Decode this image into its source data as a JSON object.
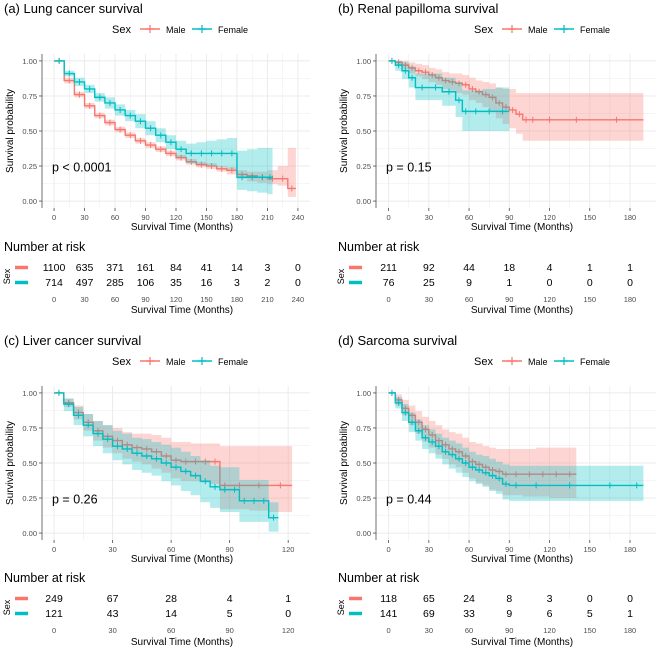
{
  "legend": {
    "title": "Sex",
    "male": "Male",
    "female": "Female"
  },
  "colors": {
    "male": "#F8766D",
    "female": "#00BFC4",
    "grid": "#EBEBEB",
    "axis": "#4D4D4D",
    "text": "#000000"
  },
  "risk_heading": "Number at risk",
  "risk_strata_label": "Sex",
  "chart_data": [
    {
      "type": "line",
      "title": "(a) Lung cancer survival",
      "xlabel": "Survival Time (Months)",
      "ylabel": "Survival probability",
      "xlim": [
        0,
        240
      ],
      "ylim": [
        0,
        1
      ],
      "xticks": [
        0,
        30,
        60,
        90,
        120,
        150,
        180,
        210,
        240
      ],
      "yticks": [
        "0.00",
        "0.25",
        "0.50",
        "0.75",
        "1.00"
      ],
      "pvalue": "p < 0.0001",
      "series": [
        {
          "name": "Male",
          "x": [
            0,
            10,
            20,
            30,
            40,
            50,
            60,
            70,
            80,
            90,
            100,
            110,
            120,
            130,
            140,
            150,
            160,
            170,
            180,
            190,
            200,
            210,
            220,
            230,
            238
          ],
          "y": [
            1.0,
            0.86,
            0.76,
            0.68,
            0.61,
            0.56,
            0.51,
            0.47,
            0.43,
            0.4,
            0.37,
            0.34,
            0.31,
            0.28,
            0.26,
            0.25,
            0.23,
            0.22,
            0.19,
            0.18,
            0.17,
            0.16,
            0.16,
            0.09,
            0.09
          ],
          "lower": [
            1.0,
            0.84,
            0.74,
            0.66,
            0.59,
            0.54,
            0.49,
            0.45,
            0.41,
            0.38,
            0.35,
            0.32,
            0.29,
            0.26,
            0.24,
            0.23,
            0.21,
            0.19,
            0.16,
            0.14,
            0.13,
            0.12,
            0.11,
            0.03,
            0.03
          ],
          "upper": [
            1.0,
            0.88,
            0.78,
            0.7,
            0.63,
            0.58,
            0.53,
            0.49,
            0.45,
            0.42,
            0.39,
            0.36,
            0.33,
            0.3,
            0.28,
            0.27,
            0.25,
            0.24,
            0.22,
            0.21,
            0.21,
            0.22,
            0.25,
            0.38,
            0.38
          ]
        },
        {
          "name": "Female",
          "x": [
            0,
            10,
            20,
            30,
            40,
            50,
            60,
            70,
            80,
            90,
            100,
            110,
            120,
            130,
            140,
            150,
            160,
            170,
            180,
            190,
            200,
            210,
            215
          ],
          "y": [
            1.0,
            0.91,
            0.85,
            0.8,
            0.74,
            0.7,
            0.65,
            0.61,
            0.57,
            0.52,
            0.47,
            0.42,
            0.37,
            0.34,
            0.34,
            0.34,
            0.34,
            0.34,
            0.17,
            0.17,
            0.17,
            0.17,
            0.17
          ],
          "lower": [
            1.0,
            0.89,
            0.82,
            0.77,
            0.71,
            0.66,
            0.61,
            0.57,
            0.52,
            0.47,
            0.42,
            0.37,
            0.31,
            0.27,
            0.26,
            0.25,
            0.24,
            0.23,
            0.08,
            0.07,
            0.06,
            0.05,
            0.05
          ],
          "upper": [
            1.0,
            0.93,
            0.88,
            0.83,
            0.77,
            0.74,
            0.69,
            0.65,
            0.62,
            0.57,
            0.52,
            0.47,
            0.43,
            0.41,
            0.42,
            0.43,
            0.44,
            0.45,
            0.36,
            0.37,
            0.38,
            0.38,
            0.38
          ]
        }
      ],
      "risk_table": {
        "times": [
          0,
          30,
          60,
          90,
          120,
          150,
          180,
          210,
          240
        ],
        "male": [
          1100,
          635,
          371,
          161,
          84,
          41,
          14,
          3,
          0
        ],
        "female": [
          714,
          497,
          285,
          106,
          35,
          16,
          3,
          2,
          0
        ]
      }
    },
    {
      "type": "line",
      "title": "(b) Renal papilloma survival",
      "xlabel": "Survival Time (Months)",
      "ylabel": "Survival probability",
      "xlim": [
        0,
        190
      ],
      "ylim": [
        0,
        1
      ],
      "xticks": [
        0,
        30,
        60,
        90,
        120,
        150,
        180
      ],
      "yticks": [
        "0.00",
        "0.25",
        "0.50",
        "0.75",
        "1.00"
      ],
      "pvalue": "p = 0.15",
      "series": [
        {
          "name": "Male",
          "x": [
            0,
            5,
            10,
            15,
            20,
            25,
            30,
            35,
            40,
            45,
            50,
            55,
            60,
            65,
            70,
            75,
            80,
            85,
            90,
            95,
            100,
            105,
            110,
            130,
            150,
            190
          ],
          "y": [
            1.0,
            0.99,
            0.97,
            0.95,
            0.93,
            0.92,
            0.9,
            0.88,
            0.86,
            0.85,
            0.84,
            0.83,
            0.8,
            0.78,
            0.76,
            0.74,
            0.7,
            0.67,
            0.65,
            0.62,
            0.58,
            0.58,
            0.58,
            0.58,
            0.58,
            0.58
          ],
          "lower": [
            1.0,
            0.97,
            0.94,
            0.91,
            0.89,
            0.87,
            0.85,
            0.83,
            0.8,
            0.79,
            0.77,
            0.76,
            0.72,
            0.7,
            0.67,
            0.64,
            0.59,
            0.55,
            0.52,
            0.48,
            0.43,
            0.43,
            0.43,
            0.43,
            0.43,
            0.43
          ],
          "upper": [
            1.0,
            1.0,
            1.0,
            0.99,
            0.98,
            0.97,
            0.95,
            0.94,
            0.92,
            0.91,
            0.91,
            0.9,
            0.88,
            0.86,
            0.85,
            0.84,
            0.81,
            0.8,
            0.8,
            0.77,
            0.77,
            0.77,
            0.77,
            0.77,
            0.77,
            0.77
          ]
        },
        {
          "name": "Female",
          "x": [
            0,
            5,
            10,
            15,
            20,
            30,
            40,
            50,
            55,
            60,
            70,
            80,
            90
          ],
          "y": [
            1.0,
            0.97,
            0.93,
            0.88,
            0.81,
            0.81,
            0.78,
            0.72,
            0.64,
            0.64,
            0.64,
            0.64,
            0.64
          ],
          "lower": [
            1.0,
            0.93,
            0.87,
            0.81,
            0.72,
            0.72,
            0.68,
            0.6,
            0.5,
            0.5,
            0.5,
            0.5,
            0.5
          ],
          "upper": [
            1.0,
            1.0,
            0.99,
            0.96,
            0.91,
            0.91,
            0.88,
            0.85,
            0.79,
            0.79,
            0.8,
            0.81,
            0.82
          ]
        }
      ],
      "risk_table": {
        "times": [
          0,
          30,
          60,
          90,
          120,
          150,
          180
        ],
        "male": [
          211,
          92,
          44,
          18,
          4,
          1,
          1
        ],
        "female": [
          76,
          25,
          9,
          1,
          0,
          0,
          0
        ]
      }
    },
    {
      "type": "line",
      "title": "(c) Liver cancer survival",
      "xlabel": "Survival Time (Months)",
      "ylabel": "Survival probability",
      "xlim": [
        0,
        125
      ],
      "ylim": [
        0,
        1
      ],
      "xticks": [
        0,
        30,
        60,
        90,
        120
      ],
      "yticks": [
        "0.00",
        "0.25",
        "0.50",
        "0.75",
        "1.00"
      ],
      "pvalue": "p = 0.26",
      "series": [
        {
          "name": "Male",
          "x": [
            0,
            5,
            10,
            15,
            20,
            25,
            30,
            35,
            40,
            45,
            50,
            55,
            60,
            65,
            70,
            75,
            80,
            85,
            90,
            100,
            110,
            122
          ],
          "y": [
            1.0,
            0.93,
            0.86,
            0.79,
            0.73,
            0.69,
            0.66,
            0.63,
            0.61,
            0.6,
            0.58,
            0.55,
            0.52,
            0.51,
            0.51,
            0.51,
            0.51,
            0.34,
            0.34,
            0.34,
            0.34,
            0.34
          ],
          "lower": [
            1.0,
            0.9,
            0.81,
            0.73,
            0.66,
            0.61,
            0.57,
            0.53,
            0.51,
            0.49,
            0.46,
            0.43,
            0.39,
            0.37,
            0.37,
            0.36,
            0.35,
            0.17,
            0.17,
            0.16,
            0.15,
            0.15
          ],
          "upper": [
            1.0,
            0.96,
            0.91,
            0.85,
            0.8,
            0.77,
            0.75,
            0.72,
            0.71,
            0.71,
            0.7,
            0.68,
            0.65,
            0.65,
            0.64,
            0.64,
            0.64,
            0.62,
            0.62,
            0.62,
            0.62,
            0.62
          ]
        },
        {
          "name": "Female",
          "x": [
            0,
            5,
            10,
            15,
            20,
            25,
            30,
            35,
            40,
            45,
            50,
            55,
            60,
            65,
            70,
            75,
            80,
            85,
            90,
            95,
            100,
            105,
            110,
            115
          ],
          "y": [
            1.0,
            0.92,
            0.84,
            0.77,
            0.71,
            0.67,
            0.62,
            0.6,
            0.57,
            0.55,
            0.53,
            0.5,
            0.47,
            0.44,
            0.41,
            0.37,
            0.33,
            0.31,
            0.31,
            0.23,
            0.23,
            0.23,
            0.11,
            0.11
          ],
          "lower": [
            1.0,
            0.87,
            0.77,
            0.69,
            0.62,
            0.57,
            0.52,
            0.49,
            0.45,
            0.43,
            0.41,
            0.37,
            0.34,
            0.3,
            0.27,
            0.22,
            0.18,
            0.15,
            0.15,
            0.08,
            0.08,
            0.08,
            0.01,
            0.01
          ],
          "upper": [
            1.0,
            0.96,
            0.9,
            0.85,
            0.8,
            0.77,
            0.73,
            0.71,
            0.68,
            0.67,
            0.65,
            0.63,
            0.61,
            0.58,
            0.55,
            0.52,
            0.48,
            0.47,
            0.47,
            0.38,
            0.38,
            0.38,
            0.22,
            0.22
          ]
        }
      ],
      "risk_table": {
        "times": [
          0,
          30,
          60,
          90,
          120
        ],
        "male": [
          249,
          67,
          28,
          4,
          1
        ],
        "female": [
          121,
          43,
          14,
          5,
          0
        ]
      }
    },
    {
      "type": "line",
      "title": "(d) Sarcoma survival",
      "xlabel": "Survival Time (Months)",
      "ylabel": "Survival probability",
      "xlim": [
        0,
        190
      ],
      "ylim": [
        0,
        1
      ],
      "xticks": [
        0,
        30,
        60,
        90,
        120,
        150,
        180
      ],
      "yticks": [
        "0.00",
        "0.25",
        "0.50",
        "0.75",
        "1.00"
      ],
      "pvalue": "p = 0.44",
      "series": [
        {
          "name": "Male",
          "x": [
            0,
            5,
            10,
            15,
            20,
            25,
            30,
            35,
            40,
            45,
            50,
            55,
            60,
            65,
            70,
            75,
            80,
            85,
            90,
            100,
            110,
            120,
            130,
            140
          ],
          "y": [
            1.0,
            0.95,
            0.89,
            0.84,
            0.79,
            0.74,
            0.7,
            0.66,
            0.63,
            0.6,
            0.58,
            0.55,
            0.51,
            0.49,
            0.47,
            0.45,
            0.44,
            0.42,
            0.42,
            0.42,
            0.42,
            0.42,
            0.42,
            0.42
          ],
          "lower": [
            1.0,
            0.91,
            0.84,
            0.77,
            0.71,
            0.65,
            0.61,
            0.56,
            0.53,
            0.49,
            0.47,
            0.43,
            0.39,
            0.36,
            0.34,
            0.31,
            0.3,
            0.27,
            0.27,
            0.26,
            0.26,
            0.25,
            0.25,
            0.25
          ],
          "upper": [
            1.0,
            0.99,
            0.95,
            0.91,
            0.87,
            0.83,
            0.8,
            0.77,
            0.74,
            0.72,
            0.71,
            0.68,
            0.65,
            0.64,
            0.62,
            0.61,
            0.6,
            0.6,
            0.6,
            0.6,
            0.61,
            0.61,
            0.61,
            0.61
          ]
        },
        {
          "name": "Female",
          "x": [
            0,
            5,
            10,
            15,
            20,
            25,
            30,
            35,
            40,
            45,
            50,
            55,
            60,
            65,
            70,
            75,
            80,
            85,
            90,
            100,
            120,
            150,
            180,
            190
          ],
          "y": [
            1.0,
            0.93,
            0.86,
            0.79,
            0.73,
            0.68,
            0.65,
            0.62,
            0.58,
            0.56,
            0.53,
            0.5,
            0.47,
            0.45,
            0.43,
            0.41,
            0.39,
            0.35,
            0.34,
            0.34,
            0.34,
            0.34,
            0.34,
            0.34
          ],
          "lower": [
            1.0,
            0.89,
            0.8,
            0.72,
            0.66,
            0.6,
            0.57,
            0.53,
            0.49,
            0.46,
            0.43,
            0.4,
            0.37,
            0.35,
            0.33,
            0.3,
            0.28,
            0.24,
            0.23,
            0.23,
            0.23,
            0.23,
            0.23,
            0.23
          ],
          "upper": [
            1.0,
            0.97,
            0.92,
            0.86,
            0.81,
            0.77,
            0.74,
            0.71,
            0.68,
            0.66,
            0.64,
            0.61,
            0.58,
            0.56,
            0.55,
            0.53,
            0.51,
            0.49,
            0.48,
            0.48,
            0.48,
            0.48,
            0.48,
            0.48
          ]
        }
      ],
      "risk_table": {
        "times": [
          0,
          30,
          60,
          90,
          120,
          150,
          180
        ],
        "male": [
          118,
          65,
          24,
          8,
          3,
          0,
          0
        ],
        "female": [
          141,
          69,
          33,
          9,
          6,
          5,
          1
        ]
      }
    }
  ]
}
